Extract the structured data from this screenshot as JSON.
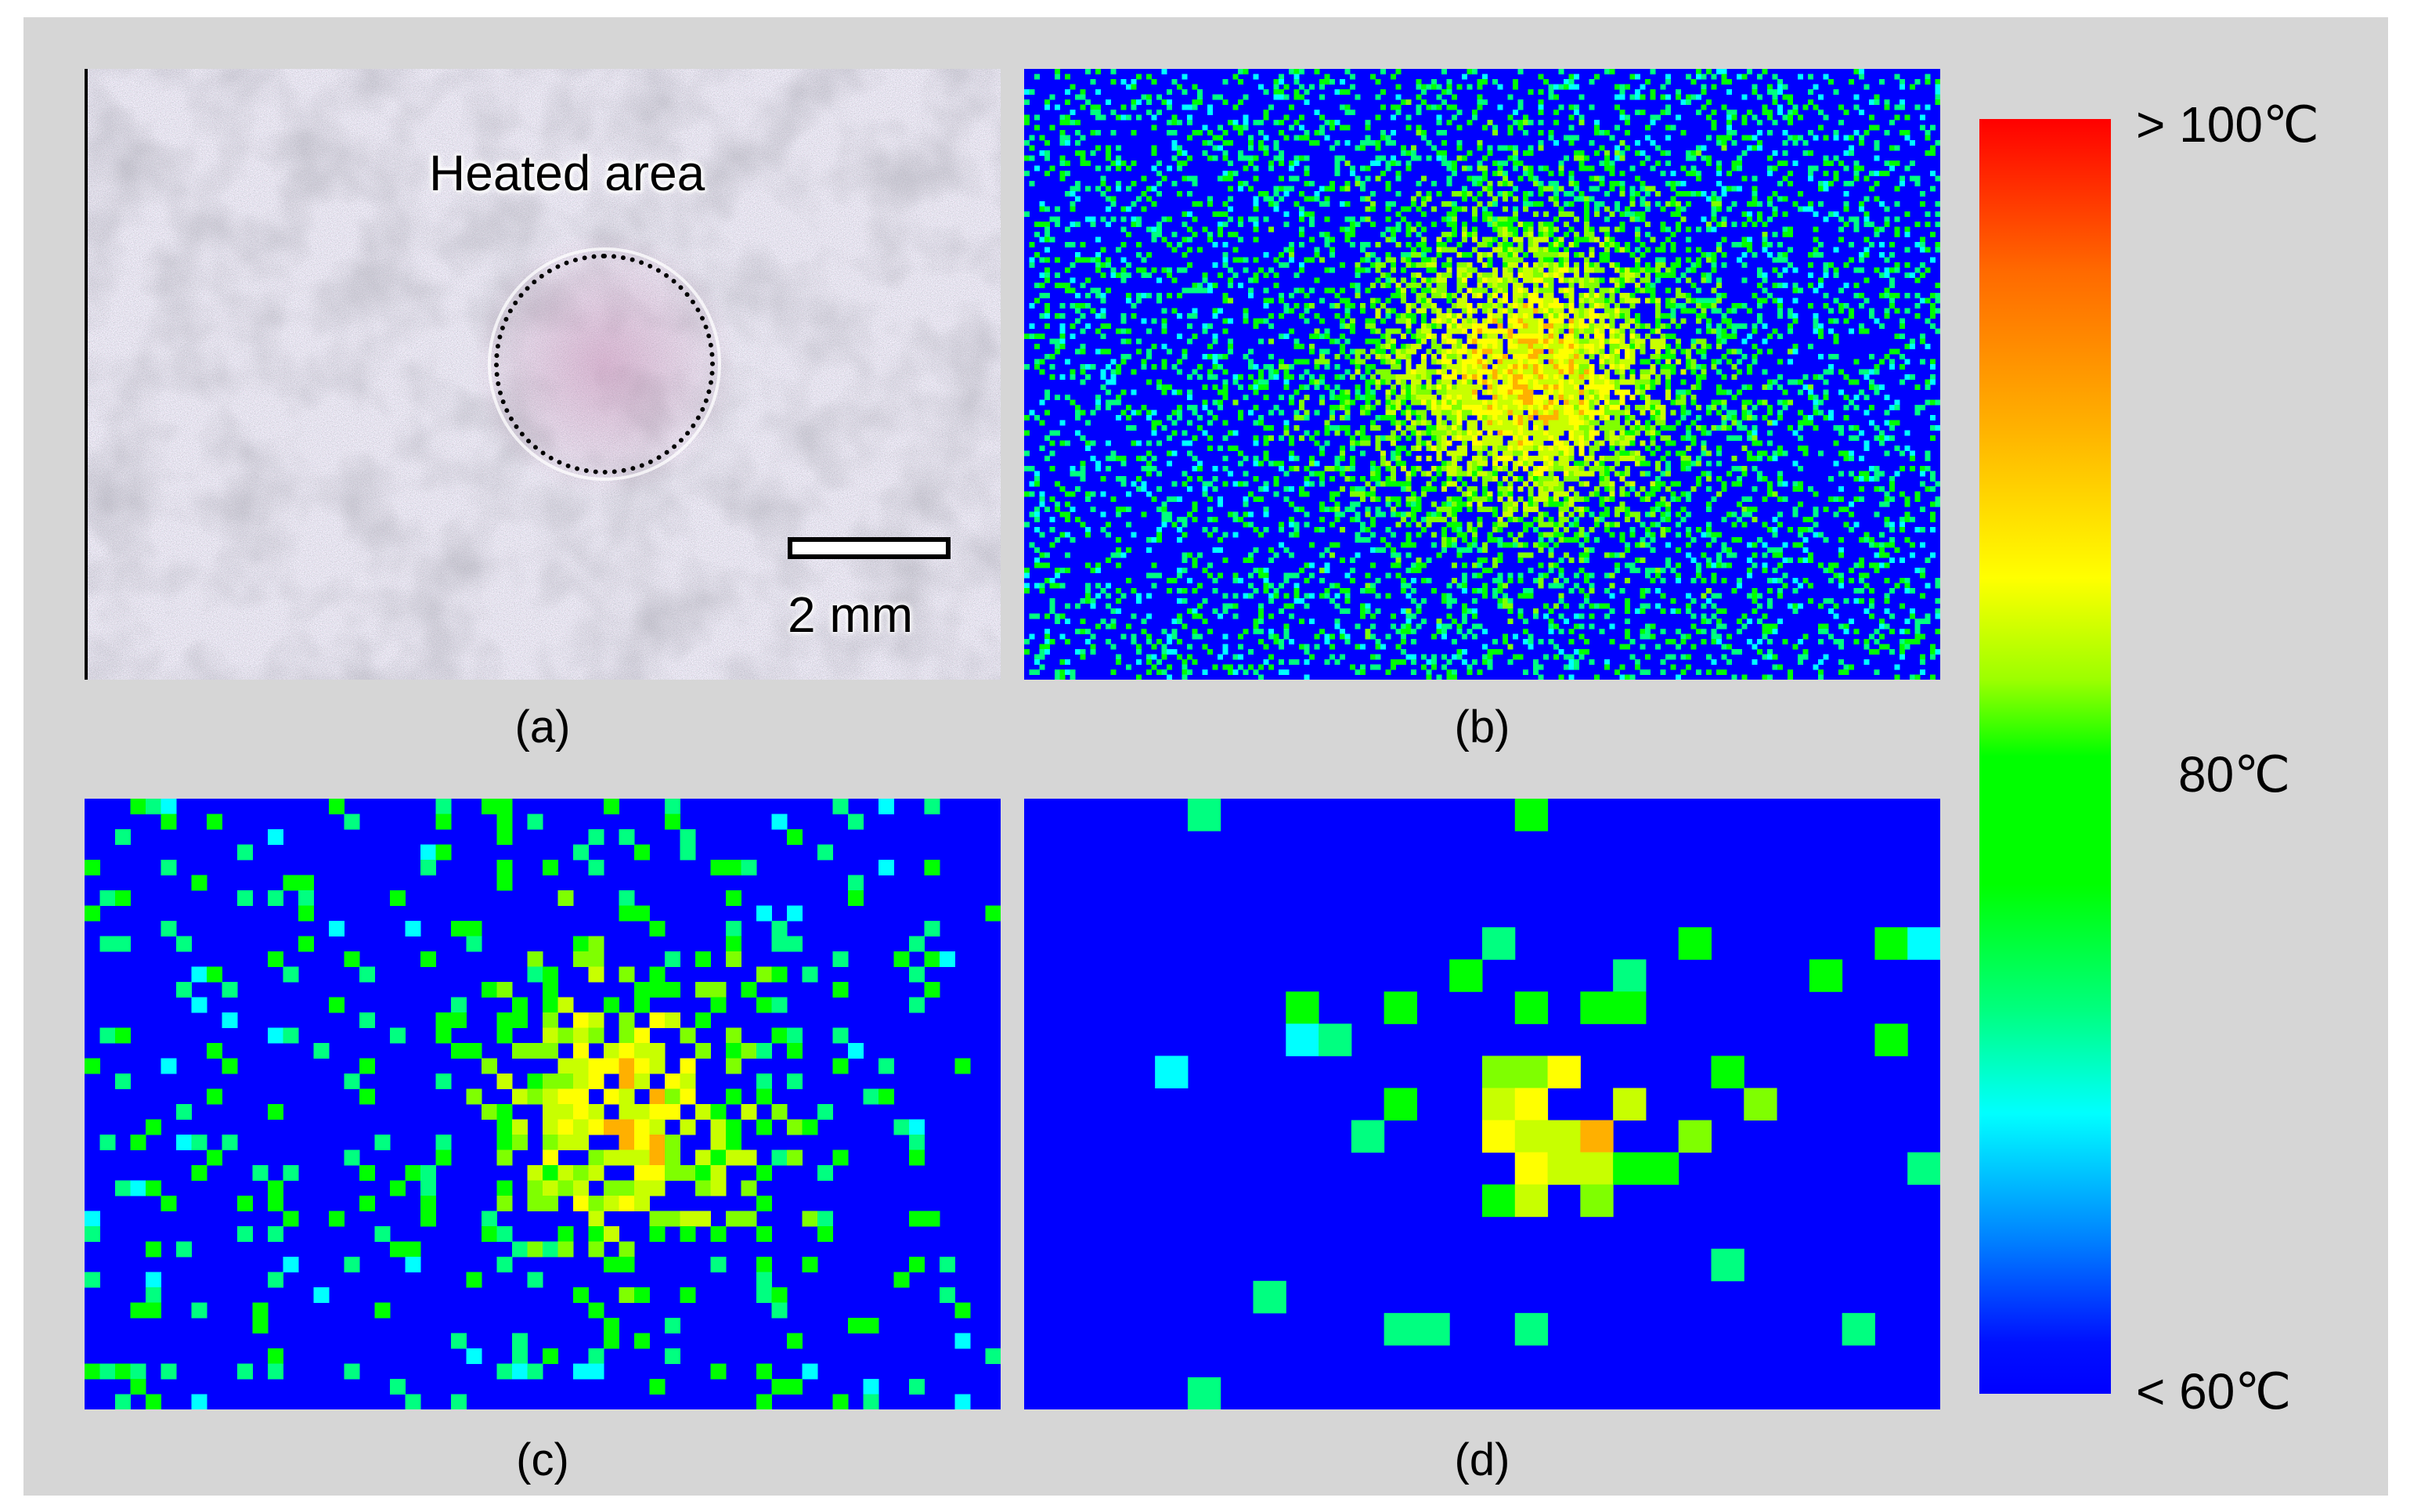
{
  "panels": {
    "a": {
      "caption": "(a)",
      "annotation": "Heated area",
      "scale_bar_label": "2 mm"
    },
    "b": {
      "caption": "(b)"
    },
    "c": {
      "caption": "(c)"
    },
    "d": {
      "caption": "(d)"
    }
  },
  "colorbar": {
    "max_label": "> 100℃",
    "mid_label": "80℃",
    "min_label": "< 60℃",
    "colors": {
      "hot": "#ff0000",
      "warm": "#ffff00",
      "mid": "#00ff00",
      "cool": "#00ffff",
      "cold": "#0000ff"
    }
  }
}
